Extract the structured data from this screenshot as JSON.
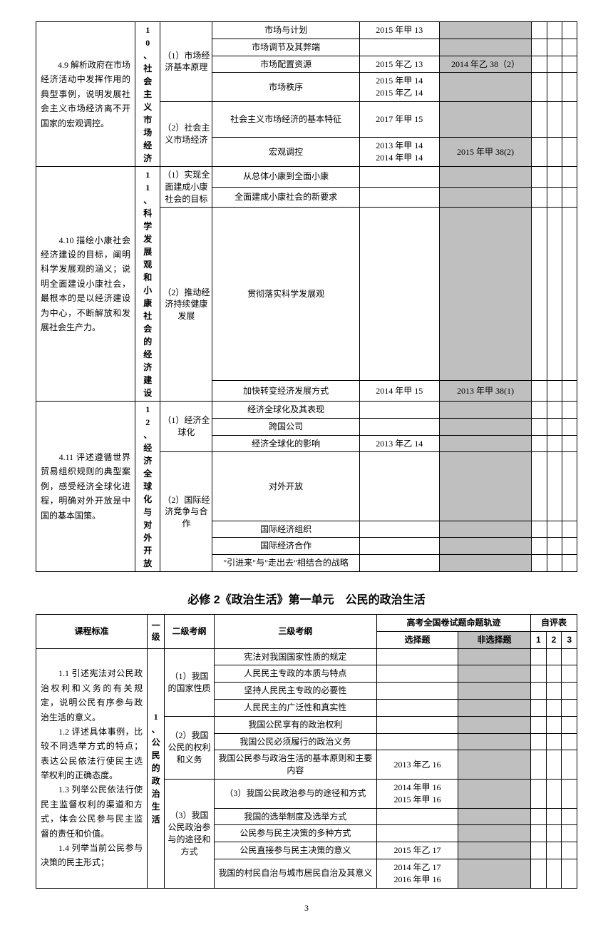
{
  "table1": {
    "rows": [
      {
        "desc": "　　4.9 解析政府在市场经济活动中发挥作用的典型事例，说明发展社会主义市场经济离不开国家的宏观调控。",
        "descRowspan": 6,
        "lv1": "10、社会主义市场经济",
        "lv1Rowspan": 6,
        "lv2": "（1）市场经济基本原理",
        "lv2Rowspan": 4,
        "lv3": "市场与计划",
        "sel": "2015 年甲 13",
        "nsel": "",
        "nselGray": true
      },
      {
        "lv3": "市场调节及其弊端",
        "sel": "",
        "nsel": "",
        "nselGray": true
      },
      {
        "lv3": "市场配置资源",
        "sel": "2015 年乙 13",
        "nsel": "2014 年乙 38（2）",
        "nselGray": true
      },
      {
        "lv3": "市场秩序",
        "sel": "2015 年甲 14\n2015 年乙 14",
        "nsel": "",
        "nselGray": true
      },
      {
        "lv2": "（2）社会主义市场经济",
        "lv2Rowspan": 2,
        "lv3": "社会主义市场经济的基本特征",
        "sel": "2017 年甲 15",
        "nsel": "",
        "nselGray": true
      },
      {
        "lv3": "宏观调控",
        "sel": "2013 年甲 14\n2014 年甲 14",
        "nsel": "2015 年甲 38(2)",
        "nselGray": true
      },
      {
        "desc": "　　4.10 描绘小康社会经济建设的目标，阐明科学发展观的涵义；说明全面建设小康社会，最根本的是以经济建设为中心，不断解放和发展社会生产力。",
        "descRowspan": 4,
        "lv1": "11、科学发展观和小康社会的经济建设",
        "lv1Rowspan": 4,
        "lv2": "（1）实现全面建成小康社会的目标",
        "lv2Rowspan": 2,
        "lv3": "从总体小康到全面小康",
        "sel": "",
        "nsel": "",
        "nselGray": true
      },
      {
        "lv3": "全面建成小康社会的新要求",
        "sel": "",
        "nsel": "",
        "nselGray": true
      },
      {
        "lv2": "（2）推动经济持续健康发展",
        "lv2Rowspan": 2,
        "lv3": "贯彻落实科学发展观",
        "sel": "",
        "nsel": "",
        "nselGray": true
      },
      {
        "lv3": "加快转变经济发展方式",
        "sel": "2014 年甲 15",
        "nsel": "2013 年甲 38(1)",
        "nselGray": true
      },
      {
        "desc": "　　4.11 评述遵循世界贸易组织规则的典型案例，感受经济全球化进程，明确对外开放是中国的基本国策。",
        "descRowspan": 7,
        "lv1": "12、经济全球化与对外开放",
        "lv1Rowspan": 7,
        "lv2": "（1）经济全球化",
        "lv2Rowspan": 3,
        "lv3": "经济全球化及其表现",
        "sel": "",
        "nsel": "",
        "nselGray": true
      },
      {
        "lv3": "跨国公司",
        "sel": "",
        "nsel": "",
        "nselGray": true
      },
      {
        "lv3": "经济全球化的影响",
        "sel": "2013 年乙 14",
        "nsel": "",
        "nselGray": true
      },
      {
        "lv2": "（2）国际经济竞争与合作",
        "lv2Rowspan": 4,
        "lv3": "对外开放",
        "sel": "",
        "nsel": "",
        "nselGray": true
      },
      {
        "lv3": "国际经济组织",
        "sel": "",
        "nsel": "",
        "nselGray": true
      },
      {
        "lv3": "国际经济合作",
        "sel": "",
        "nsel": "",
        "nselGray": true
      },
      {
        "lv3": "\"引进来\"与\"走出去\"相结合的战略",
        "sel": "",
        "nsel": "",
        "nselGray": true
      }
    ]
  },
  "heading2": "必修 2《政治生活》第一单元　公民的政治生活",
  "table2": {
    "header": {
      "c1": "课程标准",
      "c2": "一级",
      "c3": "二级考纲",
      "c4": "三级考纲",
      "c5": "高考全国卷试题命题轨迹",
      "c6": "自评表",
      "c5a": "选择题",
      "c5b": "非选择题",
      "c6a": "1",
      "c6b": "2",
      "c6c": "3"
    },
    "desc": "　　1.1 引述宪法对公民政治权利和义务的有关规定，说明公民有序参与政治生活的意义。\n　　1.2 评述具体事例，比较不同选举方式的特点；表达公民依法行使民主选举权利的正确态度。\n　　1.3 列举公民依法行使民主监督权利的渠道和方式，体会公民参与民主监督的责任和价值。\n　　1.4 列举当前公民参与决策的民主形式；",
    "lv1": "1、公民的政治生活",
    "rows": [
      {
        "lv2": "（1）我国的国家性质",
        "lv2Rowspan": 4,
        "lv3": "宪法对我国国家性质的规定",
        "sel": "",
        "nsel": "",
        "nselGray": true
      },
      {
        "lv3": "人民民主专政的本质与特点",
        "sel": "",
        "nsel": "",
        "nselGray": true
      },
      {
        "lv3": "坚持人民民主专政的必要性",
        "sel": "",
        "nsel": "",
        "nselGray": true
      },
      {
        "lv3": "人民民主的广泛性和真实性",
        "sel": "",
        "nsel": "",
        "nselGray": true
      },
      {
        "lv2": "（2）我国公民的权利和义务",
        "lv2Rowspan": 3,
        "lv3": "我国公民享有的政治权利",
        "sel": "",
        "nsel": "",
        "nselGray": true
      },
      {
        "lv3": "我国公民必须履行的政治义务",
        "sel": "",
        "nsel": "",
        "nselGray": true
      },
      {
        "lv3": "我国公民参与政治生活的基本原则和主要内容",
        "sel": "2013 年乙 16",
        "nsel": "",
        "nselGray": true
      },
      {
        "lv2": "（3）我国公民政治参与的途径和方式",
        "lv2Rowspan": 5,
        "lv3": "（3）我国公民政治参与的途径和方式",
        "sel": "2014 年甲 16\n2015 年甲 16",
        "nsel": "",
        "nselGray": true
      },
      {
        "lv3": "我国的选举制度及选举方式",
        "sel": "",
        "nsel": "",
        "nselGray": true
      },
      {
        "lv3": "公民参与民主决策的多种方式",
        "sel": "",
        "nsel": "",
        "nselGray": true
      },
      {
        "lv3": "公民直接参与民主决策的意义",
        "sel": "2015 年乙 17",
        "nsel": "",
        "nselGray": true
      },
      {
        "lv3": "我国的村民自治与城市居民自治及其意义",
        "sel": "2014 年乙 17\n2016 年甲 16",
        "nsel": "",
        "nselGray": true
      }
    ]
  },
  "pageNumber": "3"
}
